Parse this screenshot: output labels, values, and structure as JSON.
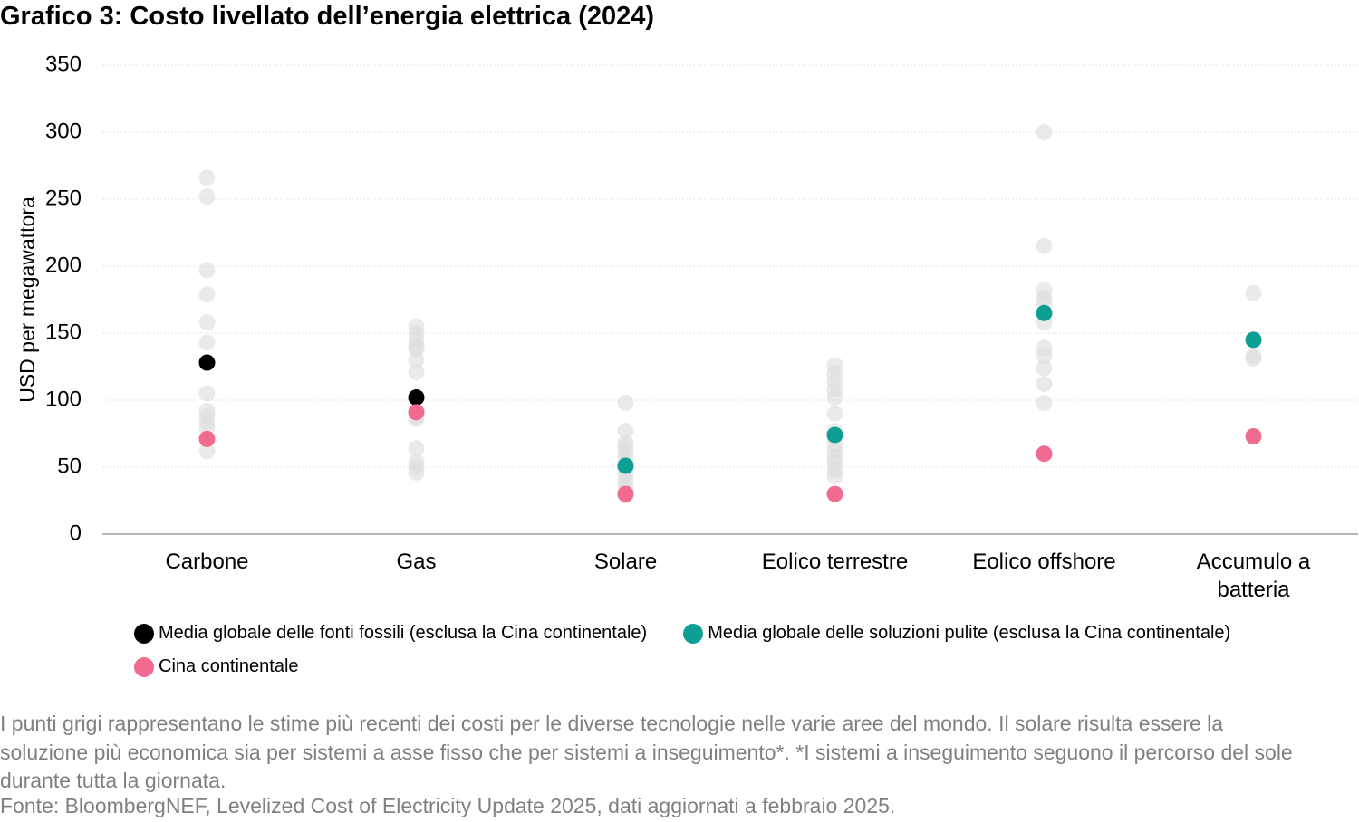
{
  "chart_data": {
    "type": "dotplot",
    "title": "Grafico 3: Costo livellato dell’energia elettrica (2024)",
    "y_label": "USD per megawattora",
    "categories": [
      "Carbone",
      "Gas",
      "Solare",
      "Eolico terrestre",
      "Eolico offshore",
      "Accumulo a batteria"
    ],
    "estimate_color": "#dcdcdc",
    "estimates": [
      [
        266,
        252,
        197,
        179,
        158,
        143,
        128,
        105,
        92,
        88,
        83,
        79,
        62
      ],
      [
        155,
        150,
        145,
        140,
        138,
        130,
        121,
        102,
        88,
        86,
        64,
        54,
        50,
        46
      ],
      [
        98,
        77,
        68,
        65,
        61,
        57,
        53,
        49,
        45,
        40,
        36,
        32,
        29
      ],
      [
        126,
        120,
        114,
        108,
        102,
        90,
        77,
        72,
        67,
        62,
        57,
        53,
        48,
        43
      ],
      [
        300,
        215,
        182,
        176,
        172,
        158,
        139,
        133,
        124,
        112,
        98
      ],
      [
        180,
        133,
        131
      ]
    ],
    "series": [
      {
        "name": "Media globale delle fonti fossili (esclusa la Cina continentale)",
        "color": "#000000",
        "values": [
          128,
          102,
          null,
          null,
          null,
          null
        ]
      },
      {
        "name": "Media globale delle soluzioni pulite (esclusa la Cina continentale)",
        "color": "#0e9f94",
        "values": [
          null,
          null,
          51,
          74,
          165,
          145
        ]
      },
      {
        "name": "Cina continentale",
        "color": "#f06b8f",
        "values": [
          71,
          91,
          30,
          30,
          60,
          73
        ]
      }
    ],
    "ylim": [
      0,
      350
    ],
    "yticks": [
      0,
      50,
      100,
      150,
      200,
      250,
      300,
      350
    ],
    "grid": true,
    "note": "I punti grigi rappresentano le stime più recenti dei costi per le diverse tecnologie nelle varie aree del mondo. Il solare risulta essere la soluzione più economica sia per sistemi a asse fisso che per sistemi a inseguimento*. *I sistemi a inseguimento seguono il percorso del sole durante tutta la giornata.",
    "source": "Fonte: BloombergNEF, Levelized Cost of Electricity Update 2025, dati aggiornati a febbraio 2025."
  }
}
